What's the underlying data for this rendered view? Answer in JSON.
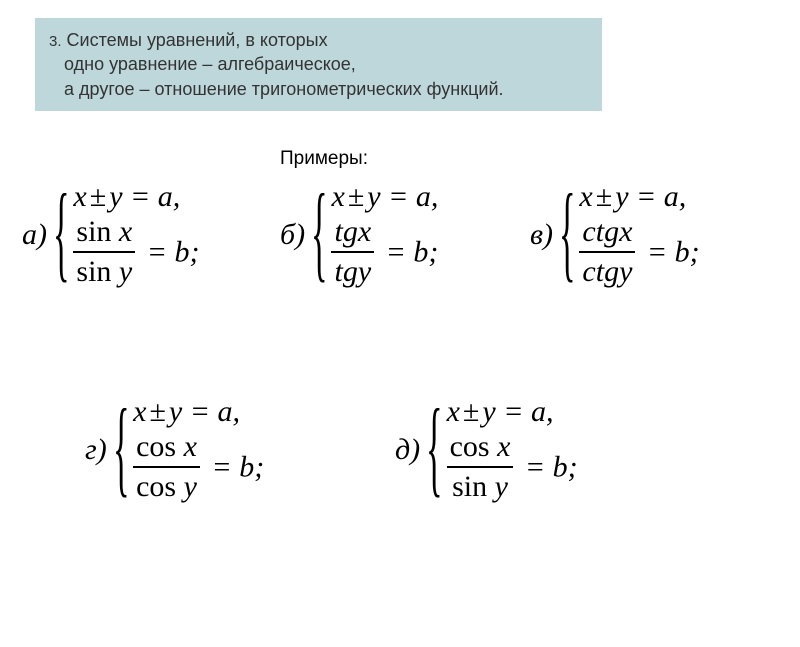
{
  "colors": {
    "header_bg": "#bdd7db",
    "text": "#000000",
    "header_text": "#333333",
    "page_bg": "#ffffff",
    "fraction_rule": "#000000"
  },
  "fonts": {
    "ui": "Arial, sans-serif",
    "math": "'Times New Roman', serif",
    "header_size_pt": 14,
    "examples_label_size_pt": 14,
    "math_size_pt": 22
  },
  "header": {
    "number": "3.",
    "line1": "Системы уравнений, в которых",
    "line2": "одно уравнение – алгебраическое,",
    "line3": "а другое – отношение тригонометрических функций."
  },
  "examples_label": "Примеры:",
  "linear_template": {
    "lhs_var1": "x",
    "op_symbol": "±",
    "lhs_var2": "y",
    "eq": "=",
    "rhs": "a",
    "tail": ","
  },
  "ratio_template": {
    "eq": "=",
    "rhs": "b",
    "tail": ";"
  },
  "examples": [
    {
      "id": "ex-a",
      "label": "а)",
      "num_fn": "sin",
      "num_arg": "x",
      "den_fn": "sin",
      "den_arg": "y",
      "brace_scaleY": 3.6
    },
    {
      "id": "ex-b",
      "label": "б)",
      "num_fn": "tg",
      "num_arg": "x",
      "den_fn": "tg",
      "den_arg": "y",
      "brace_scaleY": 3.6
    },
    {
      "id": "ex-c",
      "label": "в)",
      "num_fn": "ctg",
      "num_arg": "x",
      "den_fn": "ctg",
      "den_arg": "y",
      "brace_scaleY": 3.6
    },
    {
      "id": "ex-d",
      "label": "г)",
      "num_fn": "cos",
      "num_arg": "x",
      "den_fn": "cos",
      "den_arg": "y",
      "brace_scaleY": 3.6
    },
    {
      "id": "ex-e",
      "label": "д)",
      "num_fn": "cos",
      "num_arg": "x",
      "den_fn": "sin",
      "den_arg": "y",
      "brace_scaleY": 3.6
    }
  ]
}
